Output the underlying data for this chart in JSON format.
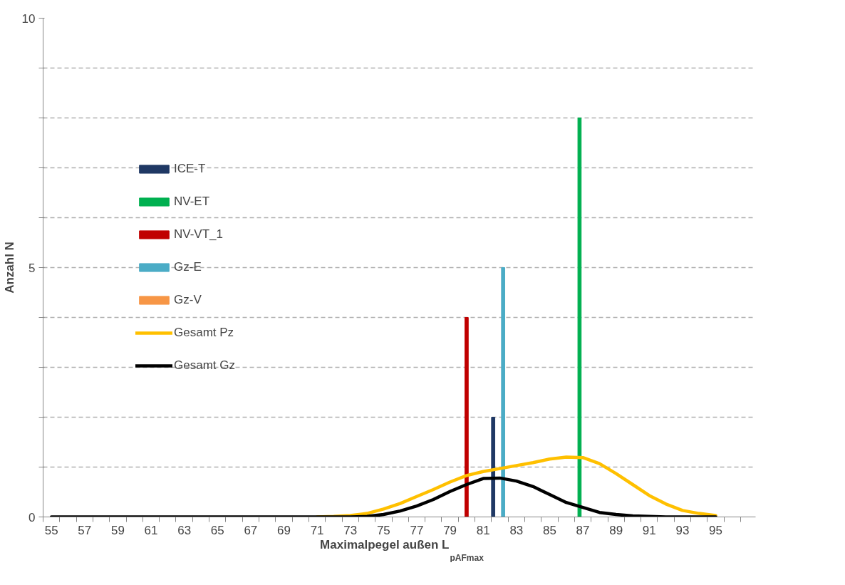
{
  "chart_data": {
    "type": "bar",
    "xlabel": "Maximalpegel außen L$_{pAFmax}$",
    "ylabel": "Anzahl N",
    "categories": [
      "55",
      null,
      "57",
      null,
      "59",
      null,
      "61",
      null,
      "63",
      null,
      "65",
      null,
      "67",
      null,
      "69",
      null,
      "71",
      null,
      "73",
      null,
      "75",
      null,
      "77",
      null,
      "79",
      null,
      "81",
      null,
      "83",
      null,
      "85",
      null,
      "87",
      null,
      "89",
      null,
      "91",
      null,
      "93",
      null,
      "95"
    ],
    "ylim": [
      0,
      10
    ],
    "yticks": [
      0,
      {
        "value": 1,
        "label": null
      },
      {
        "value": 2,
        "label": null
      },
      {
        "value": 3,
        "label": null
      },
      {
        "value": 4,
        "label": null
      },
      5,
      {
        "value": 6,
        "label": null
      },
      {
        "value": 7,
        "label": null
      },
      {
        "value": 8,
        "label": null
      },
      {
        "value": 9,
        "label": null
      },
      10
    ],
    "grid": "y",
    "legend": "left",
    "series": [
      {
        "name": "ICE-T",
        "color": "#1f3864",
        "values": [
          null,
          null,
          null,
          null,
          null,
          null,
          null,
          null,
          null,
          null,
          null,
          null,
          null,
          null,
          null,
          null,
          null,
          null,
          null,
          null,
          null,
          null,
          null,
          null,
          null,
          null,
          null,
          2,
          null,
          null,
          null,
          null,
          null,
          null,
          null,
          null,
          null,
          null,
          null,
          null,
          null
        ]
      },
      {
        "name": "NV-ET",
        "color": "#00b050",
        "values": [
          null,
          null,
          null,
          null,
          null,
          null,
          null,
          null,
          null,
          null,
          null,
          null,
          null,
          null,
          null,
          null,
          null,
          null,
          null,
          null,
          null,
          null,
          null,
          null,
          null,
          null,
          null,
          null,
          null,
          null,
          null,
          null,
          8,
          null,
          null,
          null,
          null,
          null,
          null,
          null,
          null
        ]
      },
      {
        "name": "NV-VT_1",
        "color": "#c00000",
        "values": [
          null,
          null,
          null,
          null,
          null,
          null,
          null,
          null,
          null,
          null,
          null,
          null,
          null,
          null,
          null,
          null,
          null,
          null,
          null,
          null,
          null,
          null,
          null,
          null,
          null,
          4,
          null,
          null,
          null,
          null,
          null,
          null,
          null,
          null,
          null,
          null,
          null,
          null,
          null,
          null,
          null
        ]
      },
      {
        "name": "Gz-E",
        "color": "#4bacc6",
        "values": [
          null,
          null,
          null,
          null,
          null,
          null,
          null,
          null,
          null,
          null,
          null,
          null,
          null,
          null,
          null,
          null,
          null,
          null,
          null,
          null,
          null,
          null,
          null,
          null,
          null,
          null,
          null,
          5,
          null,
          null,
          null,
          null,
          null,
          null,
          null,
          null,
          null,
          null,
          null,
          null,
          null
        ]
      },
      {
        "name": "Gz-V",
        "color": "#f79646",
        "values": [
          null,
          null,
          null,
          null,
          null,
          null,
          null,
          null,
          null,
          null,
          null,
          null,
          null,
          null,
          null,
          null,
          null,
          null,
          null,
          null,
          null,
          null,
          null,
          null,
          null,
          null,
          null,
          null,
          null,
          null,
          null,
          null,
          null,
          null,
          null,
          null,
          null,
          null,
          null,
          null,
          null
        ]
      },
      {
        "name": "Gesamt Pz",
        "type": "line",
        "color": "#ffc000",
        "values": [
          null,
          null,
          null,
          null,
          null,
          null,
          null,
          null,
          null,
          null,
          null,
          null,
          null,
          null,
          null,
          null,
          0,
          0.01,
          0.03,
          0.07,
          0.16,
          0.27,
          0.41,
          0.55,
          0.7,
          0.83,
          0.91,
          0.97,
          1.03,
          1.09,
          1.16,
          1.2,
          1.19,
          1.07,
          0.87,
          0.65,
          0.43,
          0.26,
          0.13,
          0.07,
          0.03
        ]
      },
      {
        "name": "Gesamt Gz",
        "type": "line",
        "color": "#000000",
        "values": [
          0,
          0,
          0,
          0,
          0,
          0,
          0,
          0,
          0,
          0,
          0,
          0,
          0,
          0,
          0,
          0,
          0,
          0,
          0,
          0.01,
          0.05,
          0.12,
          0.22,
          0.35,
          0.51,
          0.65,
          0.77,
          0.78,
          0.72,
          0.61,
          0.45,
          0.29,
          0.19,
          0.09,
          0.05,
          0.02,
          0.01,
          0,
          0,
          0,
          0
        ]
      }
    ]
  }
}
